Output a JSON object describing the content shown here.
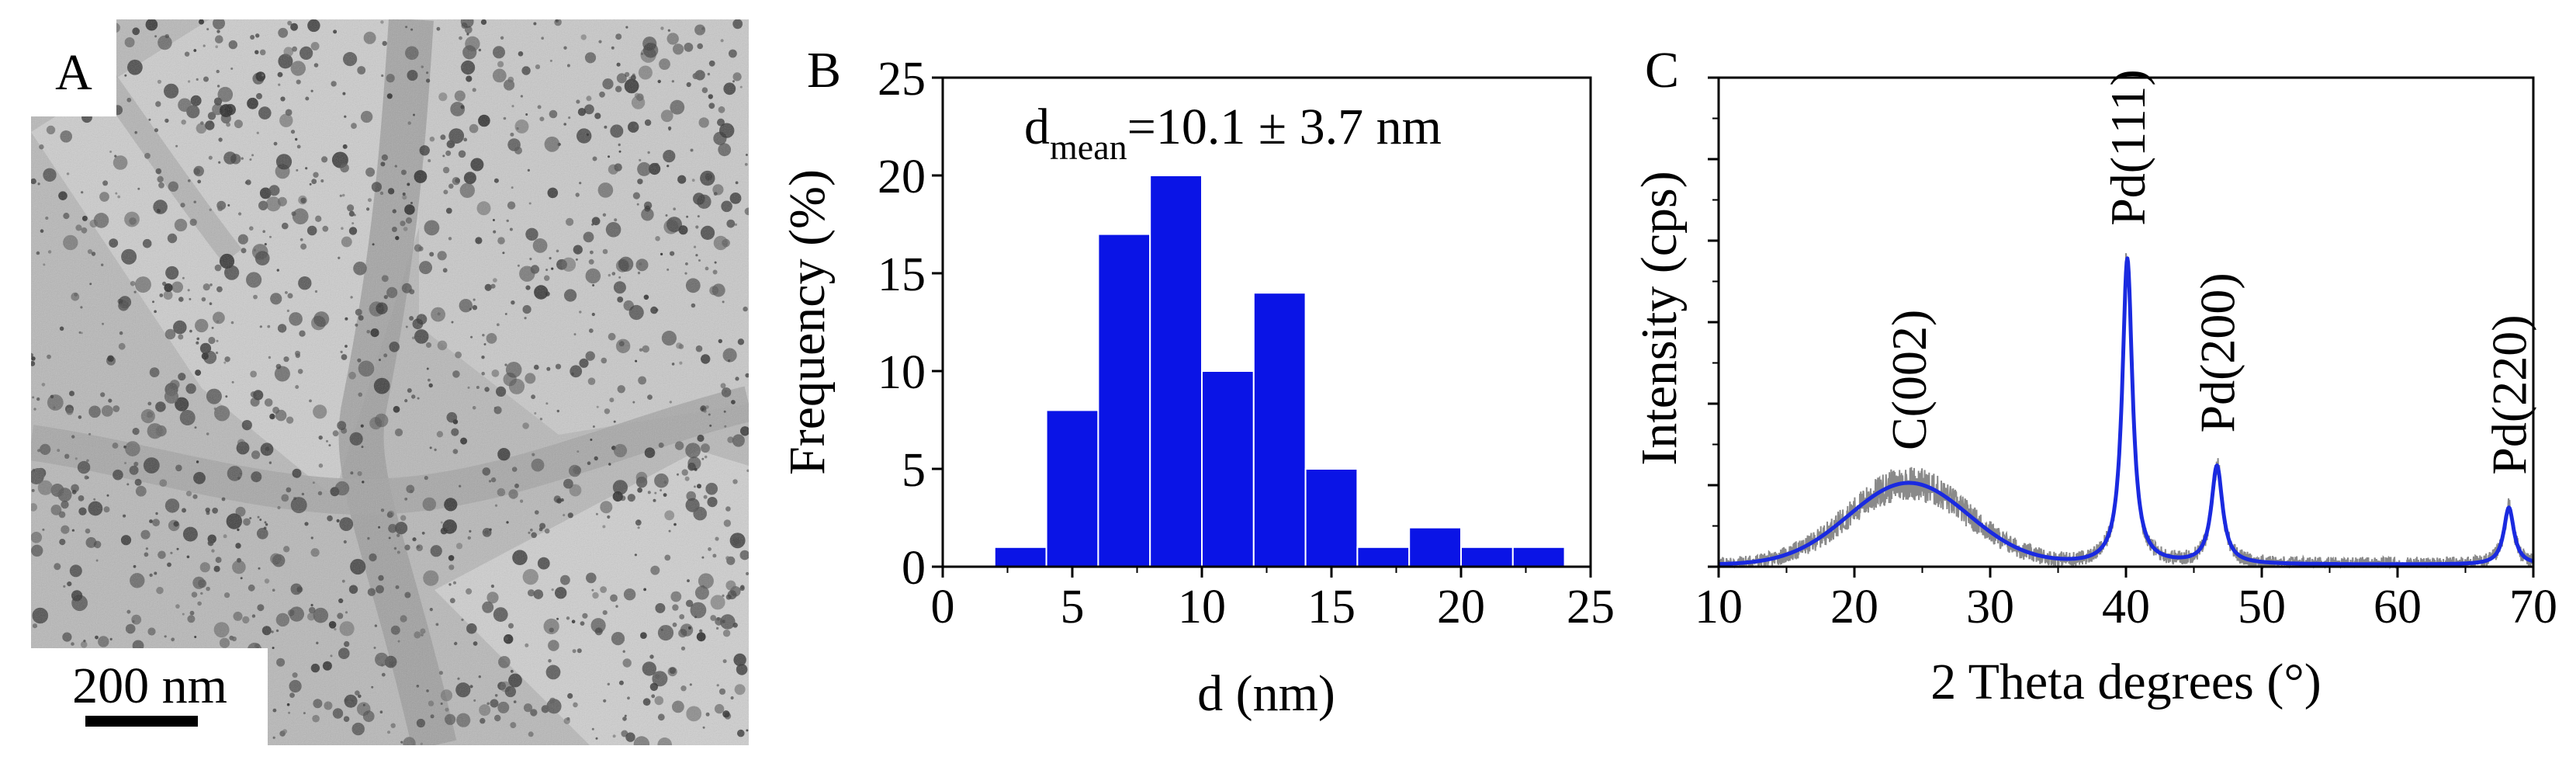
{
  "colors": {
    "bar_fill": "#0a14e6",
    "fit_line": "#1a2ae0",
    "raw_signal": "#8a8a8a",
    "axis": "#000000",
    "tem_background": "#b4b4b4"
  },
  "panel_a": {
    "letter": "A",
    "scale_bar_label": "200 nm",
    "image_description_icon": "tem-micrograph-image"
  },
  "chart_data": [
    {
      "type": "bar",
      "panel_letter": "B",
      "annotation_main": "d",
      "annotation_sub": "mean",
      "annotation_rest": "=10.1 ± 3.7 nm",
      "xlabel": "d (nm)",
      "ylabel": "Frequency (%)",
      "xlim": [
        0,
        25
      ],
      "ylim": [
        0,
        25
      ],
      "xticks": [
        0,
        5,
        10,
        15,
        20,
        25
      ],
      "yticks": [
        0,
        5,
        10,
        15,
        20,
        25
      ],
      "bin_width": 2,
      "bin_centers": [
        3,
        5,
        7,
        9,
        11,
        13,
        15,
        17,
        19,
        21,
        23
      ],
      "values": [
        1,
        8,
        17,
        20,
        10,
        14,
        5,
        1,
        2,
        1,
        1
      ],
      "grid": false,
      "legend": "none"
    },
    {
      "type": "line",
      "panel_letter": "C",
      "xlabel": "2 Theta degrees (°)",
      "ylabel": "Intensity (cps)",
      "xlim": [
        10,
        70
      ],
      "xticks": [
        10,
        20,
        30,
        40,
        50,
        60,
        70
      ],
      "yticks_labeled": false,
      "y_axis_ticks_count": 6,
      "grid": false,
      "legend": "none",
      "peaks": [
        {
          "label": "C(002)",
          "position": 24,
          "height": 0.2,
          "width": 4.4,
          "shape": "gaussian"
        },
        {
          "label": "Pd(111)",
          "position": 40.1,
          "height": 0.75,
          "width": 0.45,
          "shape": "lorentzian"
        },
        {
          "label": "Pd(200)",
          "position": 46.7,
          "height": 0.24,
          "width": 0.5,
          "shape": "lorentzian"
        },
        {
          "label": "Pd(220)",
          "position": 68.2,
          "height": 0.14,
          "width": 0.45,
          "shape": "lorentzian"
        }
      ],
      "baseline": 0.005,
      "y_range_normalized": [
        0,
        1.2
      ],
      "series": [
        {
          "style": "raw",
          "color": "#8a8a8a"
        },
        {
          "style": "fit",
          "color": "#1a2ae0"
        }
      ]
    }
  ]
}
